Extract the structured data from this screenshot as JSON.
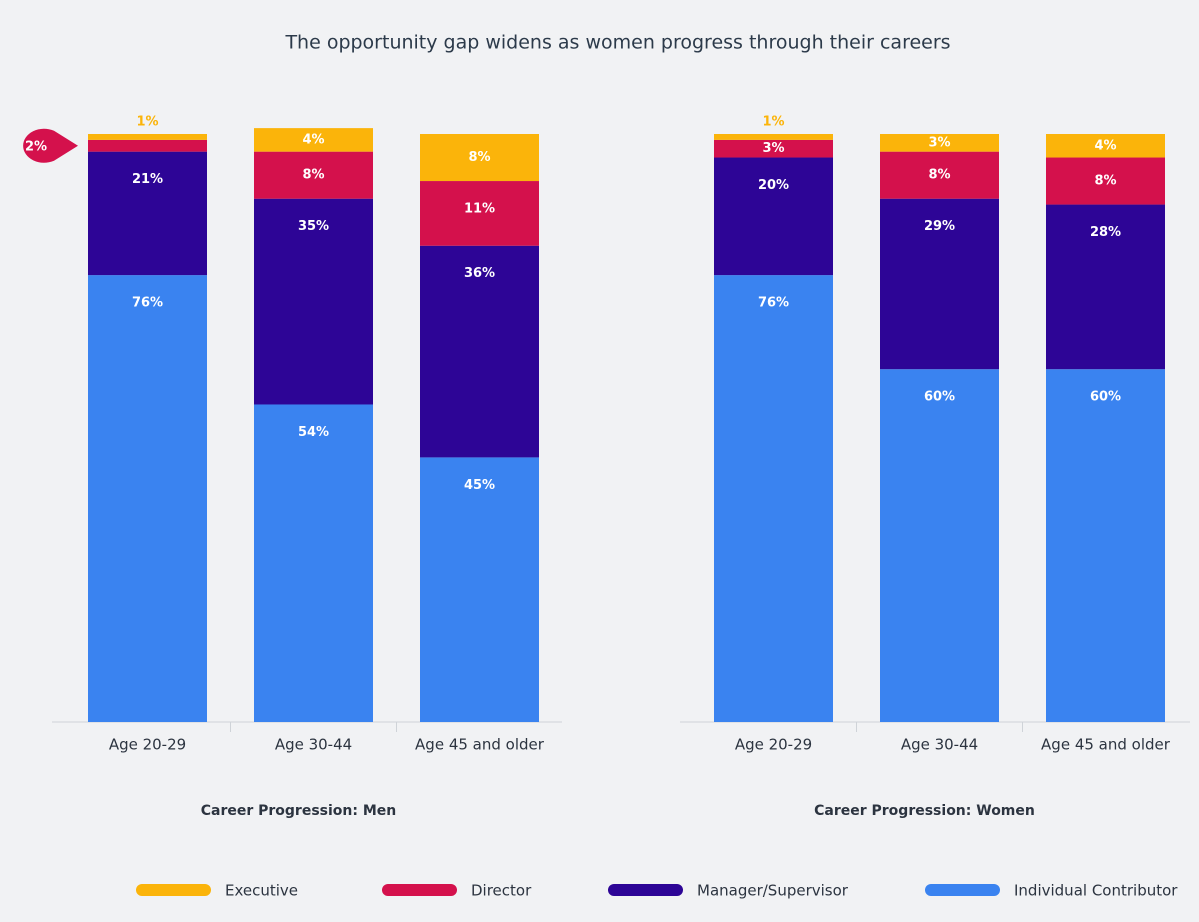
{
  "title": "The opportunity gap widens as women progress through their careers",
  "legend": [
    {
      "name": "Executive",
      "color": "#fbb40a"
    },
    {
      "name": "Director",
      "color": "#d4114c"
    },
    {
      "name": "Manager/Supervisor",
      "color": "#2d0596"
    },
    {
      "name": "Individual Contributor",
      "color": "#3a83f0"
    }
  ],
  "chart_data": [
    {
      "type": "stacked_bar",
      "xlabel": "Career Progression: Men",
      "categories": [
        "Age 20-29",
        "Age 30-44",
        "Age 45 and older"
      ],
      "ylim": [
        0,
        100
      ],
      "series": [
        {
          "values": [
            1,
            4,
            8
          ],
          "value_labels": [
            "1%",
            "4%",
            "8%"
          ]
        },
        {
          "values": [
            2,
            8,
            11
          ],
          "value_labels": [
            "2%",
            "8%",
            "11%"
          ]
        },
        {
          "values": [
            21,
            35,
            36
          ],
          "value_labels": [
            "21%",
            "35%",
            "36%"
          ]
        },
        {
          "values": [
            76,
            54,
            45
          ],
          "value_labels": [
            "76%",
            "54%",
            "45%"
          ]
        }
      ]
    },
    {
      "type": "stacked_bar",
      "xlabel": "Career Progression: Women",
      "categories": [
        "Age 20-29",
        "Age 30-44",
        "Age 45 and older"
      ],
      "ylim": [
        0,
        100
      ],
      "series": [
        {
          "values": [
            1,
            3,
            4
          ],
          "value_labels": [
            "1%",
            "3%",
            "4%"
          ]
        },
        {
          "values": [
            3,
            8,
            8
          ],
          "value_labels": [
            "3%",
            "8%",
            "8%"
          ]
        },
        {
          "values": [
            20,
            29,
            28
          ],
          "value_labels": [
            "20%",
            "29%",
            "28%"
          ]
        },
        {
          "values": [
            76,
            60,
            60
          ],
          "value_labels": [
            "76%",
            "60%",
            "60%"
          ]
        }
      ]
    }
  ]
}
